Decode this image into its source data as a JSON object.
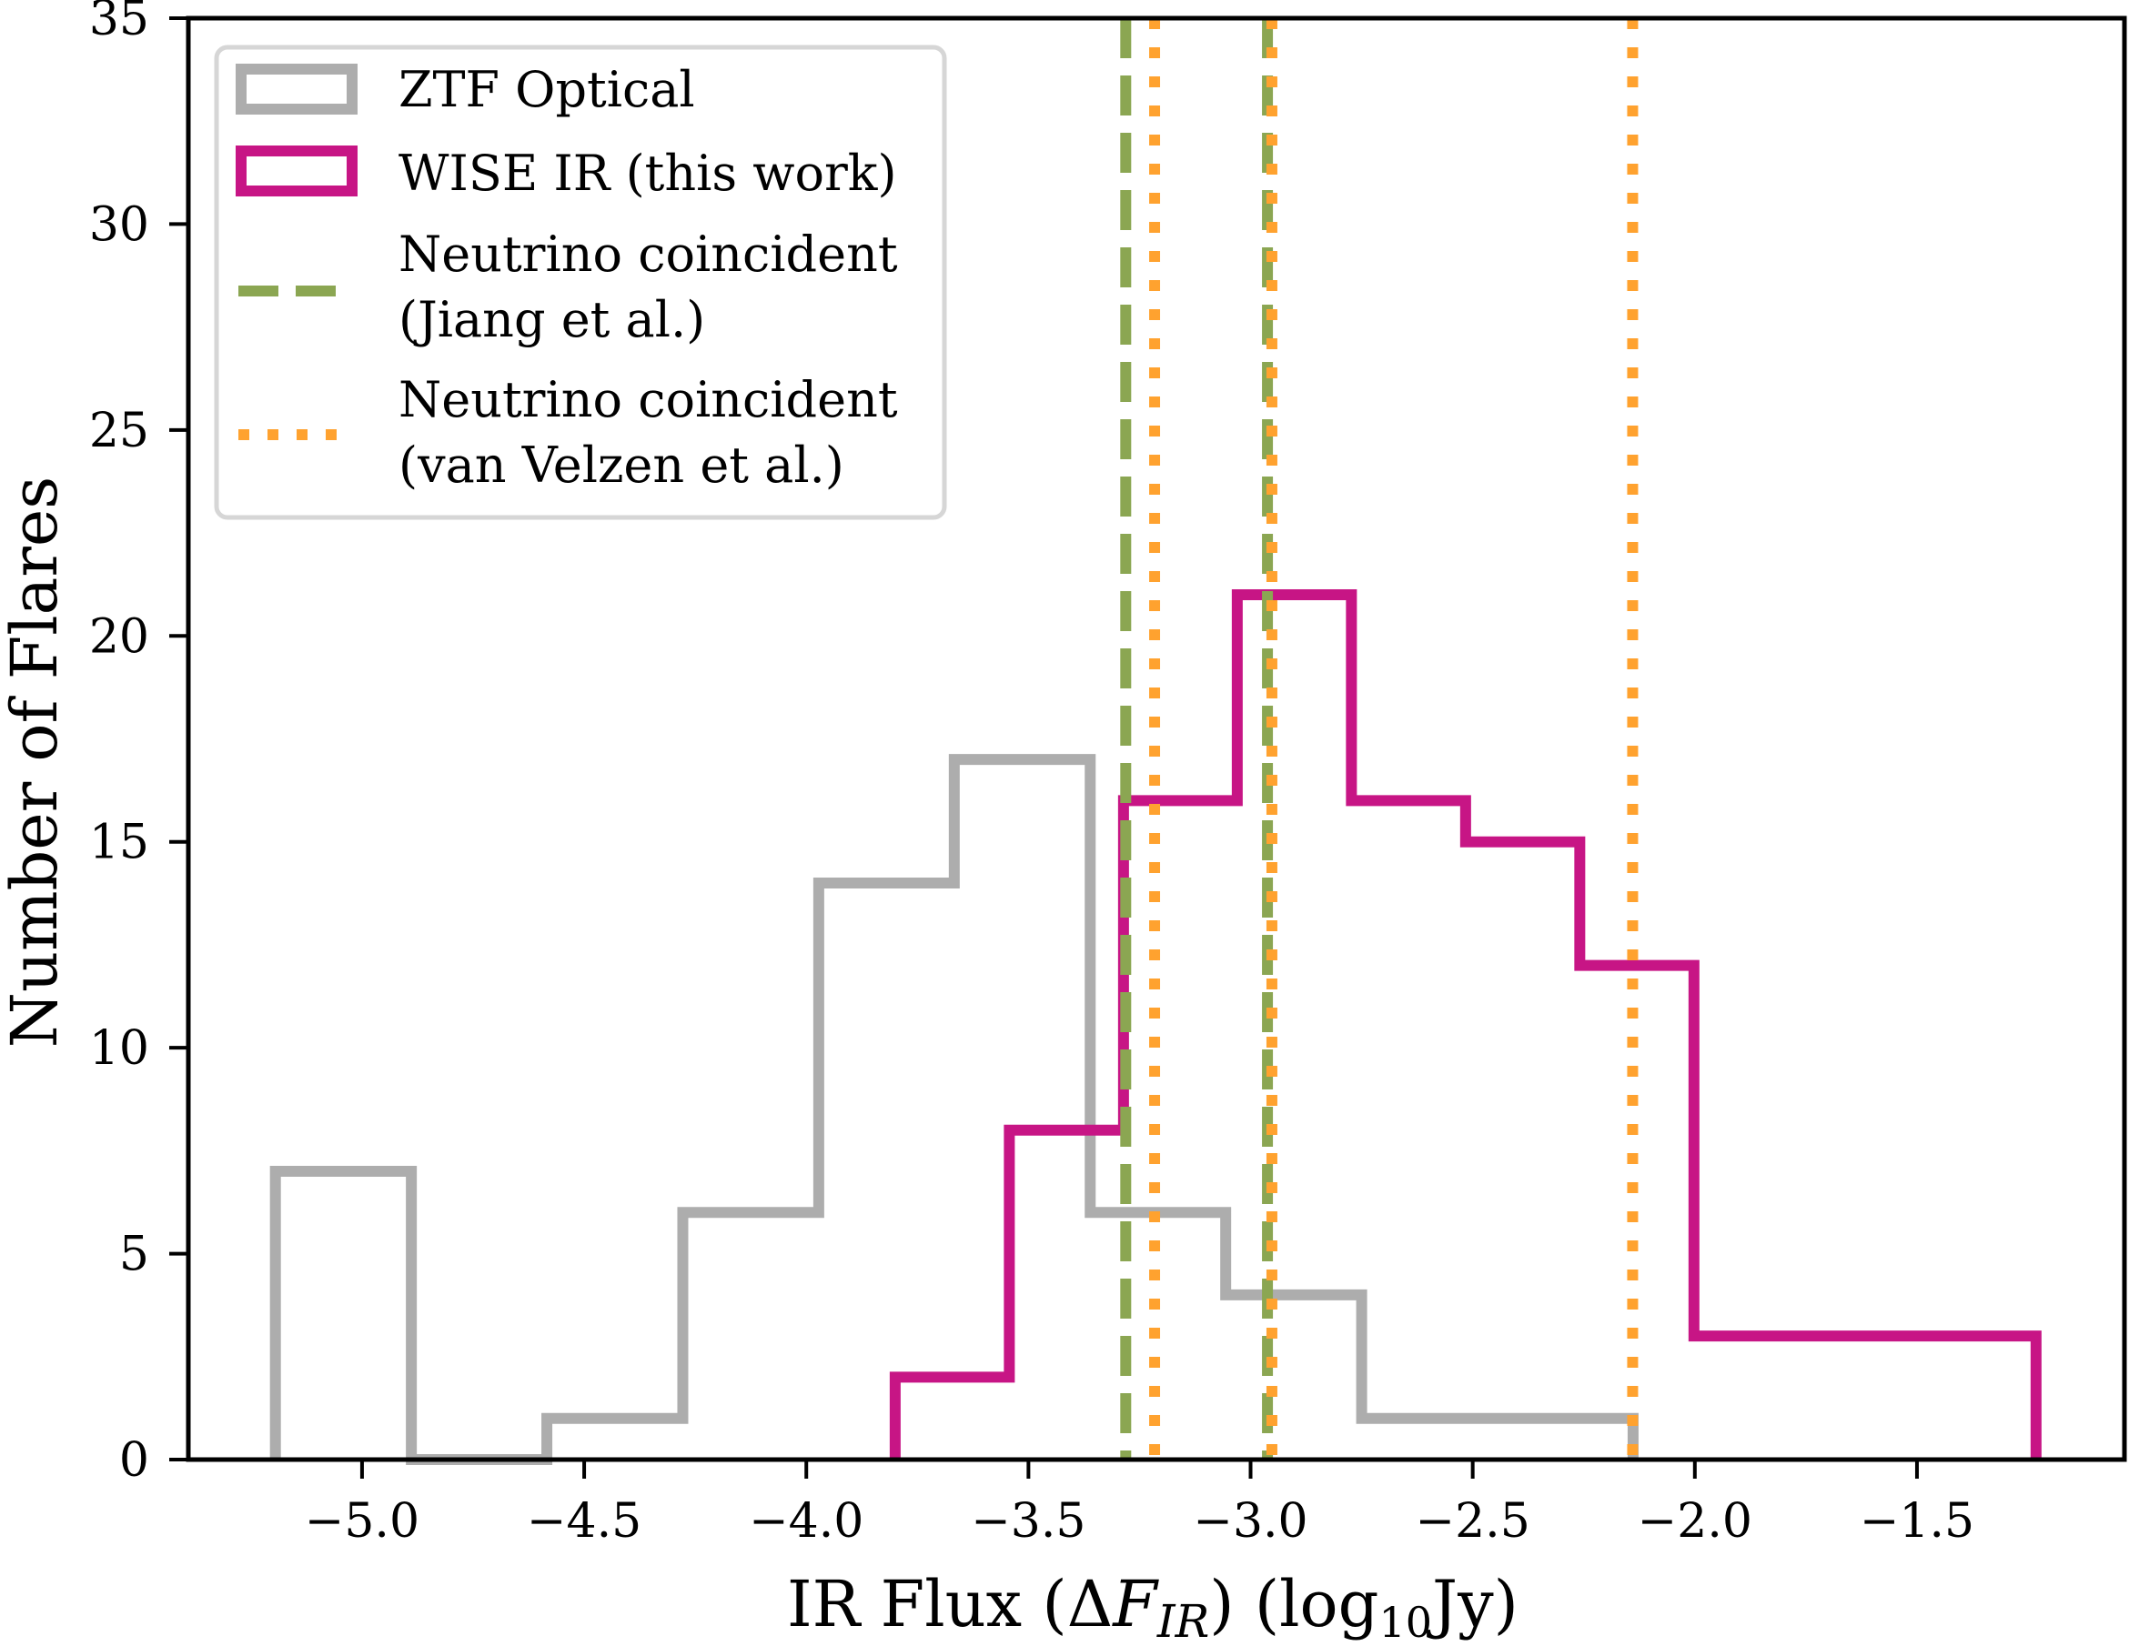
{
  "chart_data": {
    "type": "histogram",
    "title": "",
    "xlabel": "IR Flux (ΔF_IR) (log10 Jy)",
    "xlabel_parts": {
      "prefix": "IR Flux (Δ",
      "italic": "F",
      "italic_sub": "IR",
      "middle": ") (log",
      "sub": "10",
      "suffix": "Jy)"
    },
    "ylabel": "Number of Flares",
    "xlim": [
      -5.391,
      -1.033
    ],
    "ylim": [
      0,
      35
    ],
    "xticks": [
      -5.0,
      -4.5,
      -4.0,
      -3.5,
      -3.0,
      -2.5,
      -2.0,
      -1.5
    ],
    "xtick_labels": [
      "−5.0",
      "−4.5",
      "−4.0",
      "−3.5",
      "−3.0",
      "−2.5",
      "−2.0",
      "−1.5"
    ],
    "yticks": [
      0,
      5,
      10,
      15,
      20,
      25,
      30,
      35
    ],
    "ytick_labels": [
      "0",
      "5",
      "10",
      "15",
      "20",
      "25",
      "30",
      "35"
    ],
    "grid": false,
    "legend_position": "top-left",
    "series": [
      {
        "name": "ZTF Optical",
        "kind": "step-histogram",
        "color": "#ADADAD",
        "bin_edges": [
          -5.195,
          -4.889,
          -4.584,
          -4.278,
          -3.972,
          -3.667,
          -3.361,
          -3.056,
          -2.75,
          -2.445,
          -2.139
        ],
        "counts": [
          7,
          0,
          1,
          6,
          14,
          17,
          6,
          4,
          1,
          1
        ]
      },
      {
        "name": "WISE IR (this work)",
        "kind": "step-histogram",
        "color": "#C71585",
        "bin_edges": [
          -3.8,
          -3.543,
          -3.286,
          -3.03,
          -2.773,
          -2.516,
          -2.259,
          -2.002,
          -1.746,
          -1.489,
          -1.232
        ],
        "counts": [
          2,
          8,
          16,
          21,
          16,
          15,
          12,
          3,
          3,
          3
        ]
      },
      {
        "name": "Neutrino coincident (Jiang et al.)",
        "kind": "vlines",
        "linestyle": "dashed",
        "color": "#8BA652",
        "x": [
          -3.281,
          -2.962
        ]
      },
      {
        "name": "Neutrino coincident (van Velzen et al.)",
        "kind": "vlines",
        "linestyle": "dotted",
        "color": "#FFA22F",
        "x": [
          -3.216,
          -2.952,
          -2.14
        ]
      }
    ],
    "legend": [
      {
        "key": "ztf",
        "lines": [
          "ZTF Optical"
        ],
        "style": "patch",
        "color": "#ADADAD"
      },
      {
        "key": "wise",
        "lines": [
          "WISE IR (this work)"
        ],
        "style": "patch",
        "color": "#C71585"
      },
      {
        "key": "jiang",
        "lines": [
          "Neutrino coincident",
          "(Jiang et al.)"
        ],
        "style": "dashed",
        "color": "#8BA652"
      },
      {
        "key": "vanvelzen",
        "lines": [
          "Neutrino coincident",
          "(van Velzen et al.)"
        ],
        "style": "dotted",
        "color": "#FFA22F"
      }
    ]
  }
}
